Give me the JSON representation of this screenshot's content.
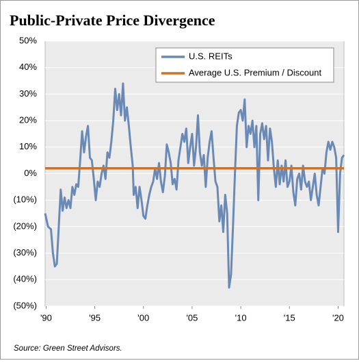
{
  "chart_data": {
    "type": "line",
    "title": "Public-Private Price Divergence",
    "source": "Source: Green Street Advisors.",
    "xlim": [
      1989.9,
      2020.6
    ],
    "ylim": [
      -50,
      50
    ],
    "xticks": [
      {
        "value": 1990,
        "label": "'90"
      },
      {
        "value": 1995,
        "label": "'95"
      },
      {
        "value": 2000,
        "label": "'00"
      },
      {
        "value": 2005,
        "label": "'05"
      },
      {
        "value": 2010,
        "label": "'10"
      },
      {
        "value": 2015,
        "label": "'15"
      },
      {
        "value": 2020,
        "label": "'20"
      }
    ],
    "yticks": [
      {
        "value": 50,
        "label": "50%"
      },
      {
        "value": 40,
        "label": "40%"
      },
      {
        "value": 30,
        "label": "30%"
      },
      {
        "value": 20,
        "label": "20%"
      },
      {
        "value": 10,
        "label": "10%"
      },
      {
        "value": 0,
        "label": "0%"
      },
      {
        "value": -10,
        "label": "(10%)"
      },
      {
        "value": -20,
        "label": "(20%)"
      },
      {
        "value": -30,
        "label": "(30%)"
      },
      {
        "value": -40,
        "label": "(40%)"
      },
      {
        "value": -50,
        "label": "(50%)"
      }
    ],
    "grid": true,
    "legend": "upper right",
    "series": [
      {
        "name": "U.S. REITs",
        "color": "#6a8ab5",
        "x": [
          1989.9,
          1990.2,
          1990.5,
          1990.7,
          1990.9,
          1991.1,
          1991.3,
          1991.5,
          1991.7,
          1991.9,
          1992.1,
          1992.3,
          1992.5,
          1992.7,
          1992.9,
          1993.1,
          1993.3,
          1993.5,
          1993.7,
          1993.9,
          1994.1,
          1994.3,
          1994.5,
          1994.7,
          1994.9,
          1995.1,
          1995.3,
          1995.5,
          1995.7,
          1995.9,
          1996.1,
          1996.3,
          1996.5,
          1996.7,
          1996.9,
          1997.1,
          1997.3,
          1997.5,
          1997.7,
          1997.9,
          1998.1,
          1998.3,
          1998.5,
          1998.7,
          1998.9,
          1999.0,
          1999.2,
          1999.4,
          1999.6,
          1999.8,
          2000.0,
          2000.2,
          2000.4,
          2000.6,
          2000.8,
          2001.0,
          2001.2,
          2001.4,
          2001.6,
          2001.8,
          2002.0,
          2002.2,
          2002.4,
          2002.6,
          2002.8,
          2003.0,
          2003.2,
          2003.4,
          2003.6,
          2003.8,
          2004.0,
          2004.2,
          2004.4,
          2004.6,
          2004.8,
          2005.0,
          2005.2,
          2005.4,
          2005.6,
          2005.8,
          2006.0,
          2006.2,
          2006.4,
          2006.6,
          2006.8,
          2007.0,
          2007.2,
          2007.4,
          2007.6,
          2007.8,
          2008.0,
          2008.2,
          2008.4,
          2008.6,
          2008.8,
          2009.0,
          2009.2,
          2009.4,
          2009.6,
          2009.8,
          2010.0,
          2010.2,
          2010.4,
          2010.6,
          2010.8,
          2011.0,
          2011.2,
          2011.4,
          2011.6,
          2011.8,
          2012.0,
          2012.2,
          2012.4,
          2012.6,
          2012.8,
          2013.0,
          2013.2,
          2013.4,
          2013.6,
          2013.8,
          2014.0,
          2014.2,
          2014.4,
          2014.6,
          2014.8,
          2015.0,
          2015.2,
          2015.4,
          2015.6,
          2015.8,
          2016.0,
          2016.2,
          2016.4,
          2016.6,
          2016.8,
          2017.0,
          2017.2,
          2017.4,
          2017.6,
          2017.8,
          2018.0,
          2018.2,
          2018.4,
          2018.6,
          2018.8,
          2019.0,
          2019.2,
          2019.4,
          2019.6,
          2019.8,
          2020.0,
          2020.2,
          2020.4,
          2020.6
        ],
        "values": [
          -15,
          -20,
          -21,
          -30,
          -35,
          -34,
          -20,
          -6,
          -14,
          -9,
          -13,
          -10,
          -13,
          -5,
          -8,
          -4,
          -5,
          5,
          16,
          8,
          14,
          18,
          6,
          5,
          -2,
          -10,
          -3,
          -5,
          0,
          3,
          -2,
          8,
          6,
          12,
          20,
          32,
          24,
          30,
          22,
          34,
          20,
          25,
          18,
          10,
          3,
          -8,
          -5,
          -13,
          -5,
          -10,
          -16,
          -17,
          -12,
          -8,
          -5,
          -3,
          2,
          -2,
          4,
          -3,
          -7,
          -1,
          11,
          8,
          4,
          -4,
          -2,
          -6,
          5,
          10,
          15,
          12,
          17,
          4,
          10,
          15,
          3,
          10,
          22,
          8,
          3,
          7,
          -5,
          6,
          12,
          16,
          6,
          -3,
          -5,
          -18,
          -12,
          -22,
          -8,
          -15,
          -43,
          -38,
          -20,
          0,
          18,
          23,
          24,
          20,
          28,
          10,
          18,
          15,
          20,
          10,
          18,
          -10,
          15,
          19,
          13,
          18,
          5,
          17,
          12,
          2,
          -5,
          5,
          -4,
          3,
          -3,
          5,
          -5,
          -3,
          3,
          -7,
          -12,
          -2,
          0,
          -6,
          3,
          -3,
          -5,
          -3,
          -10,
          -5,
          0,
          -8,
          -12,
          -5,
          2,
          0,
          8,
          12,
          9,
          12,
          10,
          6,
          -22,
          0,
          6,
          7
        ]
      },
      {
        "name": "Average U.S. Premium / Discount",
        "color": "#c8742c",
        "x": [
          1989.9,
          2020.6
        ],
        "values": [
          2,
          2
        ]
      }
    ]
  }
}
